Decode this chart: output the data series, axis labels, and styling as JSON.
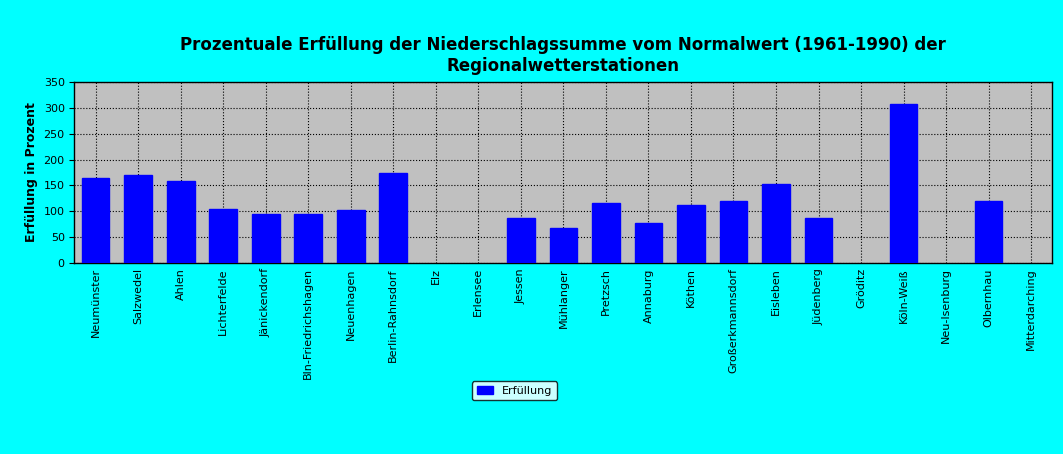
{
  "title": "Prozentuale Erfüllung der Niederschlagssumme vom Normalwert (1961-1990) der\nRegionalwetterstationen",
  "ylabel": "Erfüllung in Prozent",
  "categories": [
    "Neumünster",
    "Salzwedel",
    "Ahlen",
    "Lichterfelde",
    "Jänickendorf",
    "Bln-Friedrichshagen",
    "Neuenhagen",
    "Berlin-Rahnsdorf",
    "Elz",
    "Erlensee",
    "Jessen",
    "Mühlanger",
    "Pretzsch",
    "Annaburg",
    "Köthen",
    "Großerkmannsdorf",
    "Eisleben",
    "Jüdenberg",
    "Gröditz",
    "Köln-Weiß",
    "Neu-Isenburg",
    "Olbernhau",
    "Mitterdarching"
  ],
  "values": [
    165,
    170,
    158,
    104,
    96,
    95,
    103,
    175,
    0,
    0,
    87,
    68,
    116,
    78,
    112,
    120,
    152,
    87,
    0,
    308,
    0,
    120,
    0
  ],
  "bar_color": "#0000FF",
  "ylim": [
    0,
    350
  ],
  "yticks": [
    0,
    50,
    100,
    150,
    200,
    250,
    300,
    350
  ],
  "legend_label": "Erfüllung",
  "background_color": "#C0C0C0",
  "outer_background": "#00FFFF",
  "grid_color": "#000000",
  "title_fontsize": 12,
  "axis_fontsize": 9,
  "tick_fontsize": 8
}
